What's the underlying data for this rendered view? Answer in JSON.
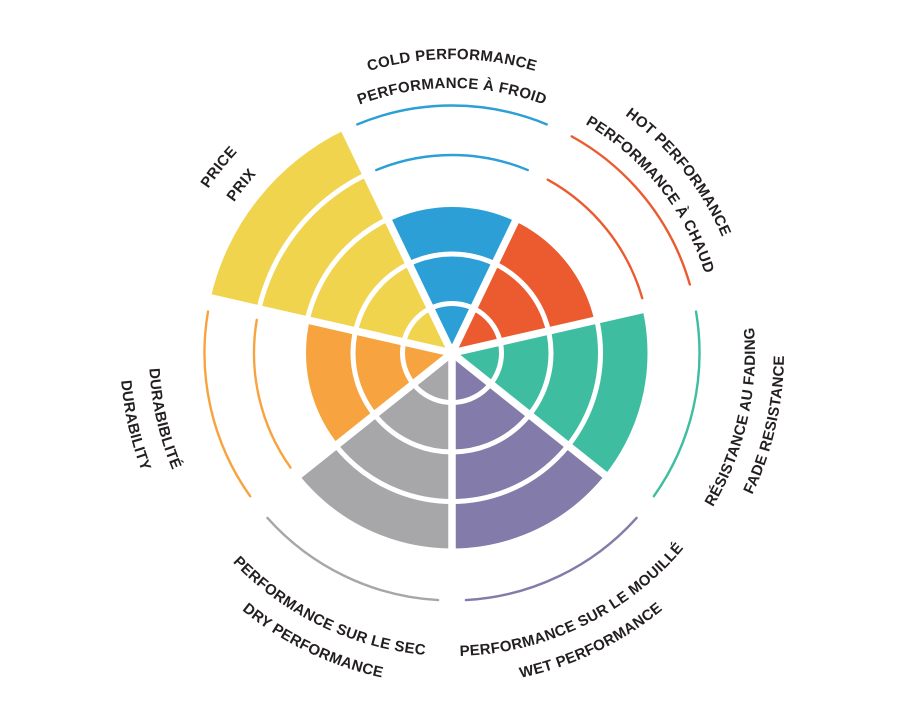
{
  "chart_data": {
    "type": "radial-rating",
    "title": "",
    "description": "Tire performance rating wheel: 7 criteria, each rated on 5 concentric rings; unfilled rings drawn as thin colored arcs; bilingual curved labels",
    "max_rating": 5,
    "rings": 5,
    "background": "#FFFFFF",
    "text_color": "#231F20",
    "divider_color": "#FFFFFF",
    "sectors": [
      {
        "id": "cold",
        "label_en": "COLD PERFORMANCE",
        "label_fr": "PERFORMANCE À FROID",
        "rating": 3,
        "color": "#2B9FD6",
        "angle_deg": 0,
        "label_orientation": "out"
      },
      {
        "id": "hot",
        "label_en": "HOT PERFORMANCE",
        "label_fr": "PERFORMANCE À CHAUD",
        "rating": 3,
        "color": "#EB5B2F",
        "angle_deg": 51.43,
        "label_orientation": "out"
      },
      {
        "id": "fade",
        "label_en": "FADE RESISTANCE",
        "label_fr": "RÉSISTANCE AU FADING",
        "rating": 4,
        "color": "#3EBDA1",
        "angle_deg": 102.86,
        "label_orientation": "in"
      },
      {
        "id": "wet",
        "label_en": "WET PERFORMANCE",
        "label_fr": "PERFORMANCE SUR LE MOUILLÉ",
        "rating": 4,
        "color": "#837BA9",
        "angle_deg": 154.29,
        "label_orientation": "in"
      },
      {
        "id": "dry",
        "label_en": "DRY PERFORMANCE",
        "label_fr": "PERFORMANCE SUR LE SEC",
        "rating": 4,
        "color": "#A7A6A9",
        "angle_deg": 205.71,
        "label_orientation": "in"
      },
      {
        "id": "durability",
        "label_en": "DURABILITY",
        "label_fr": "DURABIBLITÉ",
        "rating": 3,
        "color": "#F7A440",
        "angle_deg": 257.14,
        "label_orientation": "in"
      },
      {
        "id": "price",
        "label_en": "PRICE",
        "label_fr": "PRIX",
        "rating": 5,
        "color": "#F0D44E",
        "angle_deg": 308.57,
        "label_orientation": "out"
      }
    ]
  }
}
